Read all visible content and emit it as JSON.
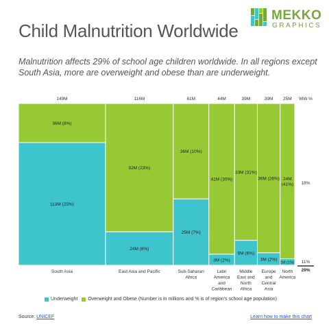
{
  "header": {
    "title": "Child Malnutrition Worldwide",
    "subtitle": "Malnutrition affects 29% of school age children worldwide. In all regions except South Asia, more are overweight and obese than are underweight."
  },
  "logo": {
    "word1": "MEKKO",
    "word2": "GRAPHICS"
  },
  "legend": {
    "underweight": "Underweight",
    "overweight": "Overweight and Obese (Number is in millions and % is of region's school age population)"
  },
  "footer": {
    "source_prefix": "Source: ",
    "source_link": "UNICEF",
    "learn_link": "Learn how to make this chart"
  },
  "colors": {
    "underweight": "#3ec4cc",
    "overweight": "#96c934",
    "border": "#ffffff"
  },
  "chart_data": {
    "type": "mekko",
    "title": "Child Malnutrition Worldwide",
    "width_unit": "M",
    "series": [
      {
        "name": "Underweight",
        "color": "#3ec4cc"
      },
      {
        "name": "Overweight and Obese",
        "color": "#96c934"
      }
    ],
    "columns": [
      {
        "category": [
          "South Asia"
        ],
        "width": 149,
        "width_label": "149M",
        "segments": [
          {
            "series": "Underweight",
            "value": 113,
            "label": "113M (25%)"
          },
          {
            "series": "Overweight and Obese",
            "value": 36,
            "label": "36M (8%)"
          }
        ]
      },
      {
        "category": [
          "East Asia and Pacific"
        ],
        "width": 116,
        "width_label": "116M",
        "segments": [
          {
            "series": "Underweight",
            "value": 24,
            "label": "24M (6%)"
          },
          {
            "series": "Overweight and Obese",
            "value": 92,
            "label": "92M (23%)"
          }
        ]
      },
      {
        "category": [
          "Sub-Saharan",
          "Africa"
        ],
        "width": 61,
        "width_label": "61M",
        "segments": [
          {
            "series": "Underweight",
            "value": 25,
            "label": "25M (7%)"
          },
          {
            "series": "Overweight and Obese",
            "value": 36,
            "label": "36M (10%)"
          }
        ]
      },
      {
        "category": [
          "Latin",
          "America",
          "and",
          "Caribbean"
        ],
        "width": 44,
        "width_label": "44M",
        "segments": [
          {
            "series": "Underweight",
            "value": 3,
            "label": "3M (2%)"
          },
          {
            "series": "Overweight and Obese",
            "value": 41,
            "label": "41M (30%)"
          }
        ]
      },
      {
        "category": [
          "Middle",
          "East and",
          "North",
          "Africa"
        ],
        "width": 39,
        "width_label": "39M",
        "segments": [
          {
            "series": "Underweight",
            "value": 6,
            "label": "6M (6%)"
          },
          {
            "series": "Overweight and Obese",
            "value": 33,
            "label": "33M (31%)"
          }
        ]
      },
      {
        "category": [
          "Europe",
          "and",
          "Central",
          "Asia"
        ],
        "width": 39,
        "width_label": "39M",
        "segments": [
          {
            "series": "Underweight",
            "value": 3,
            "label": "3M (2%)"
          },
          {
            "series": "Overweight and Obese",
            "value": 36,
            "label": "36M (26%)"
          }
        ]
      },
      {
        "category": [
          "North",
          "America"
        ],
        "width": 25,
        "width_label": "25M",
        "segments": [
          {
            "series": "Underweight",
            "value": 1,
            "label": "1M (1%)"
          },
          {
            "series": "Overweight and Obese",
            "value": 24,
            "label": "24M (41%)"
          }
        ]
      }
    ],
    "ww_column": {
      "header": "WW %",
      "overweight": "18%",
      "underweight": "11%",
      "total": "29%"
    }
  }
}
